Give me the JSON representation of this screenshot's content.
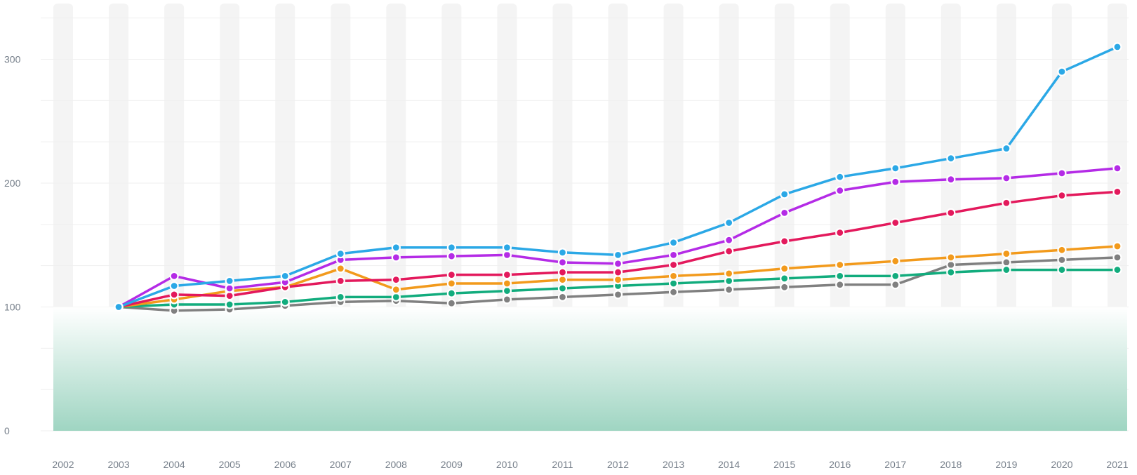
{
  "chart_data": {
    "type": "line",
    "title": "",
    "xlabel": "",
    "ylabel": "",
    "grid": true,
    "legend": "none",
    "x": [
      "2002",
      "2003",
      "2004",
      "2005",
      "2006",
      "2007",
      "2008",
      "2009",
      "2010",
      "2011",
      "2012",
      "2013",
      "2014",
      "2015",
      "2016",
      "2017",
      "2018",
      "2019",
      "2020",
      "2021"
    ],
    "yticks": [
      0,
      100,
      200,
      300
    ],
    "ylim": [
      0,
      345
    ],
    "baseline_band": {
      "from": 0,
      "to": 100,
      "color_top": "#ffffff",
      "color_bottom": "#9fd5c2"
    },
    "series": [
      {
        "color": "#2ba8e6",
        "values": [
          null,
          100,
          117,
          121,
          125,
          143,
          148,
          148,
          148,
          144,
          142,
          152,
          168,
          191,
          205,
          212,
          220,
          228,
          290,
          310
        ]
      },
      {
        "color": "#b42be6",
        "values": [
          null,
          100,
          125,
          115,
          120,
          138,
          140,
          141,
          142,
          136,
          135,
          142,
          154,
          176,
          194,
          201,
          203,
          204,
          208,
          212
        ]
      },
      {
        "color": "#e3195c",
        "values": [
          null,
          100,
          110,
          109,
          116,
          121,
          122,
          126,
          126,
          128,
          128,
          134,
          145,
          153,
          160,
          168,
          176,
          184,
          190,
          193
        ]
      },
      {
        "color": "#f29a1c",
        "values": [
          null,
          100,
          106,
          113,
          116,
          131,
          114,
          119,
          119,
          122,
          122,
          125,
          127,
          131,
          134,
          137,
          140,
          143,
          146,
          149
        ]
      },
      {
        "color": "#12ac7d",
        "values": [
          null,
          100,
          102,
          102,
          104,
          108,
          108,
          111,
          113,
          115,
          117,
          119,
          121,
          123,
          125,
          125,
          128,
          130,
          130,
          130
        ]
      },
      {
        "color": "#808080",
        "values": [
          null,
          100,
          97,
          98,
          101,
          104,
          105,
          103,
          106,
          108,
          110,
          112,
          114,
          116,
          118,
          118,
          134,
          136,
          138,
          140
        ]
      }
    ]
  }
}
